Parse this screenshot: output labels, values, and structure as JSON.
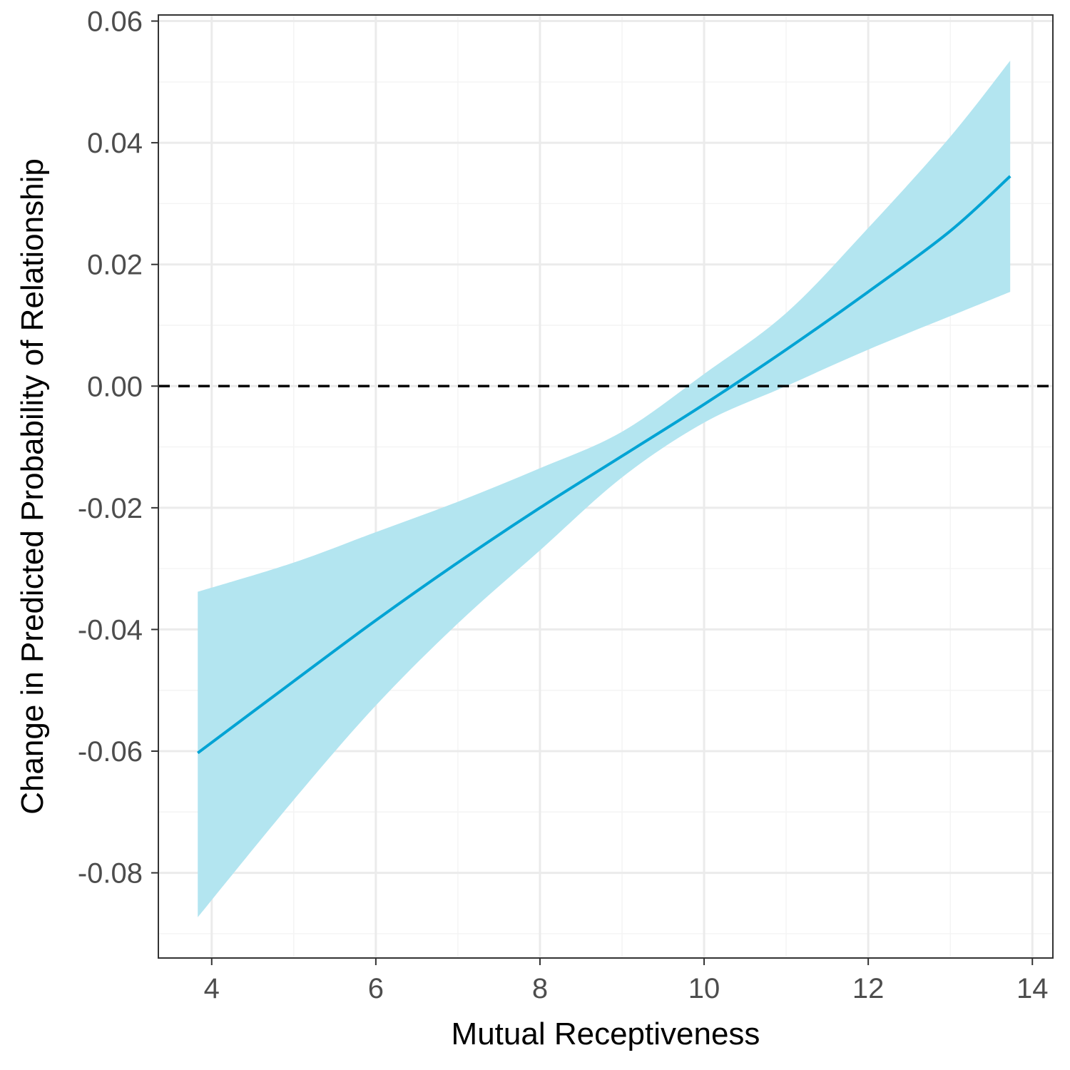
{
  "chart_data": {
    "type": "line",
    "title": "",
    "xlabel": "Mutual Receptiveness",
    "ylabel": "Change in Predicted Probability of Relationship",
    "xlim": [
      3.35,
      14.25
    ],
    "ylim": [
      -0.094,
      0.061
    ],
    "x_ticks": [
      4,
      6,
      8,
      10,
      12,
      14
    ],
    "x_tick_labels": [
      "4",
      "6",
      "8",
      "10",
      "12",
      "14"
    ],
    "y_ticks": [
      -0.08,
      -0.06,
      -0.04,
      -0.02,
      0.0,
      0.02,
      0.04,
      0.06
    ],
    "y_tick_labels": [
      "-0.08",
      "-0.06",
      "-0.04",
      "-0.02",
      "0.00",
      "0.02",
      "0.04",
      "0.06"
    ],
    "grid": true,
    "reference_line": {
      "y": 0.0,
      "style": "dashed"
    },
    "series": [
      {
        "x": [
          3.83,
          5,
          6,
          7,
          8,
          9,
          10,
          11,
          12,
          13,
          13.73
        ],
        "values": [
          -0.0603,
          -0.0485,
          -0.0385,
          -0.029,
          -0.02,
          -0.0115,
          -0.003,
          0.006,
          0.0155,
          0.0255,
          0.0345
        ],
        "lower": [
          -0.0873,
          -0.068,
          -0.0525,
          -0.039,
          -0.027,
          -0.015,
          -0.006,
          0.0,
          0.006,
          0.0115,
          0.0155
        ],
        "upper": [
          -0.0338,
          -0.029,
          -0.024,
          -0.019,
          -0.0135,
          -0.0075,
          0.002,
          0.012,
          0.026,
          0.041,
          0.0535
        ]
      }
    ],
    "colors": {
      "line": "#00a3d4",
      "ribbon": "#b3e5f0",
      "grid_major": "#ebebeb",
      "grid_minor": "#f4f4f4",
      "panel_border": "#333333",
      "reference_line": "#000000"
    }
  }
}
